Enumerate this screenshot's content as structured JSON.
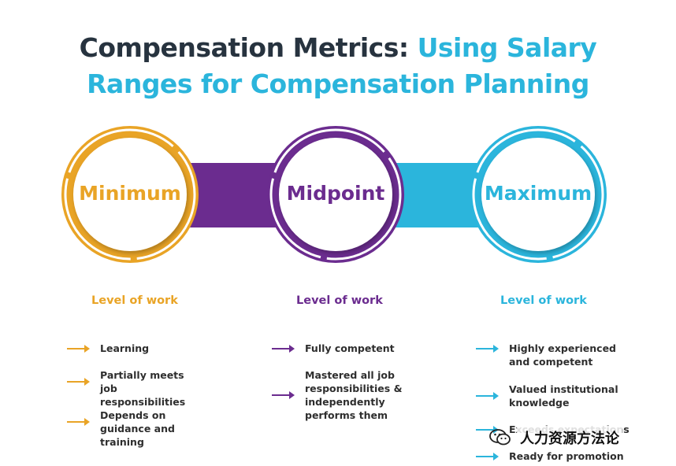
{
  "title": {
    "part1": "Compensation Metrics: ",
    "part2": "Using Salary",
    "line2": "Ranges for Compensation Planning"
  },
  "colors": {
    "orange": "#e9a426",
    "purple": "#6b2c8f",
    "blue": "#2bb5dc",
    "dark": "#27333f"
  },
  "circles": [
    {
      "label": "Minimum",
      "color": "#e9a426"
    },
    {
      "label": "Midpoint",
      "color": "#6b2c8f"
    },
    {
      "label": "Maximum",
      "color": "#2bb5dc"
    }
  ],
  "columns": [
    {
      "heading": "Level of work",
      "color": "#e9a426",
      "items": [
        "Learning",
        "Partially meets job responsibilities",
        "Depends on guidance and training"
      ]
    },
    {
      "heading": "Level of work",
      "color": "#6b2c8f",
      "items": [
        "Fully competent",
        "Mastered all job responsibilities & independently performs them"
      ]
    },
    {
      "heading": "Level of work",
      "color": "#2bb5dc",
      "items": [
        "Highly experienced and competent",
        "Valued institutional knowledge",
        "Exceeds expectations",
        "Ready for promotion"
      ]
    }
  ],
  "watermark": {
    "text": "人力资源方法论",
    "icon": "wechat-icon"
  }
}
